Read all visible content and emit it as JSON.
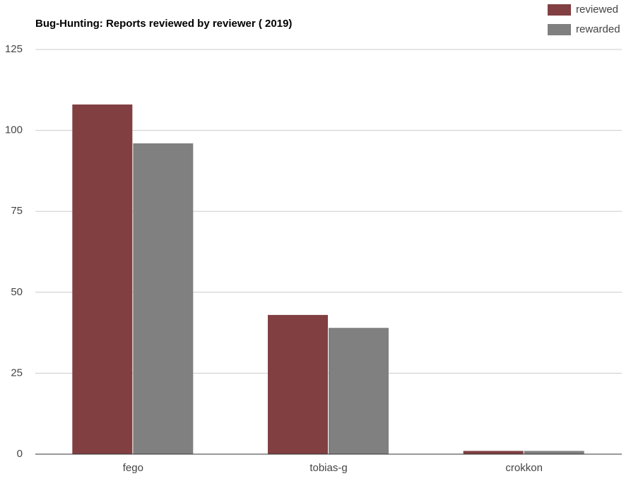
{
  "chart_data": {
    "type": "bar",
    "title": "Bug-Hunting: Reports reviewed by reviewer ( 2019)",
    "categories": [
      "fego",
      "tobias-g",
      "crokkon"
    ],
    "series": [
      {
        "name": "reviewed",
        "color": "#813f42",
        "values": [
          108,
          43,
          1
        ]
      },
      {
        "name": "rewarded",
        "color": "#808080",
        "values": [
          96,
          39,
          1
        ]
      }
    ],
    "ylim": [
      0,
      125
    ],
    "yticks": [
      0,
      25,
      50,
      75,
      100,
      125
    ],
    "grid": true,
    "legend": "top-right"
  }
}
